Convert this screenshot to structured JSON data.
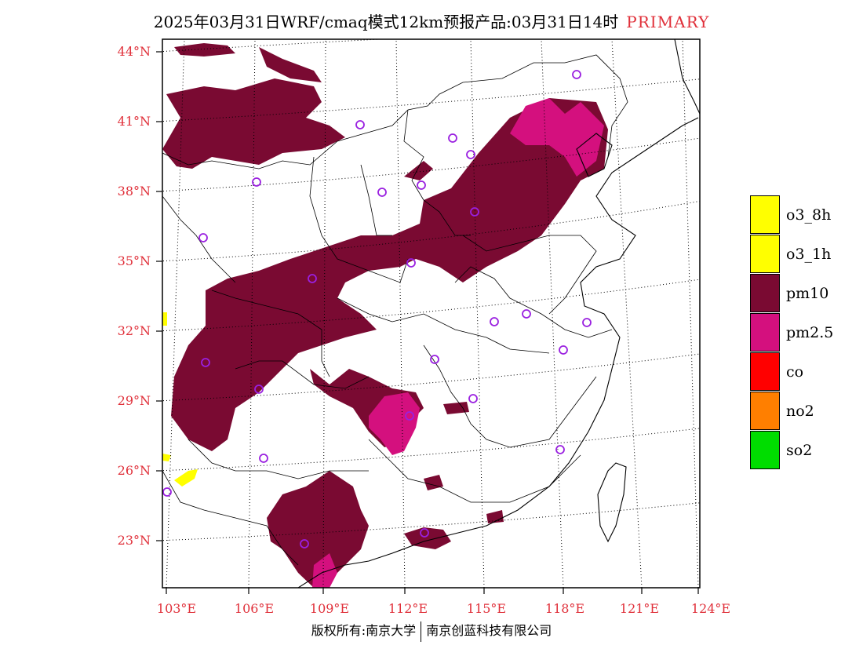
{
  "header": {
    "title": "2025年03月31日WRF/cmaq模式12km预报产品:03月31日14时",
    "tag": "PRIMARY"
  },
  "axes": {
    "lat_labels": [
      "44°N",
      "41°N",
      "38°N",
      "35°N",
      "32°N",
      "29°N",
      "26°N",
      "23°N"
    ],
    "lon_labels": [
      "103°E",
      "106°E",
      "109°E",
      "112°E",
      "115°E",
      "118°E",
      "121°E",
      "124°E"
    ]
  },
  "legend": {
    "items": [
      {
        "label": "o3_8h",
        "color": "#ffff00"
      },
      {
        "label": "o3_1h",
        "color": "#ffff00"
      },
      {
        "label": "pm10",
        "color": "#7a0a32"
      },
      {
        "label": "pm2.5",
        "color": "#d4107e"
      },
      {
        "label": "co",
        "color": "#ff0000"
      },
      {
        "label": "no2",
        "color": "#ff7f00"
      },
      {
        "label": "so2",
        "color": "#00dd00"
      }
    ]
  },
  "colors": {
    "pm10": "#7a0a32",
    "pm25": "#d4107e",
    "o3": "#ffff00",
    "station": "#9a20e0",
    "axis_label": "#e0303a"
  },
  "footer": {
    "left": "版权所有:南京大学",
    "right": "南京创蓝科技有限公司"
  }
}
